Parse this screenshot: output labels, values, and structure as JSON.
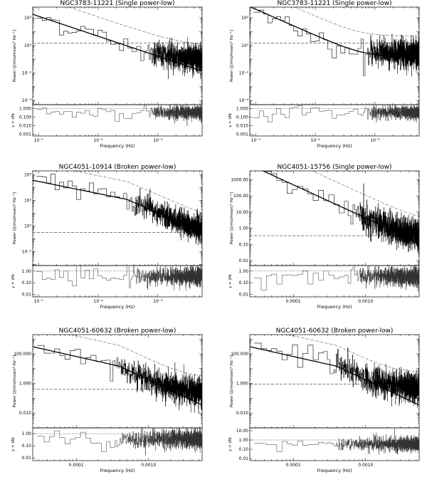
{
  "figure": {
    "xlabel": "Frequency (Hz)",
    "ylabel_power": "Power ([(rms/mean)² Hz⁻¹]",
    "ylabel_gamma": "γ = I/Nᵢ"
  },
  "chart_data": [
    {
      "type": "line",
      "title": "NGC3783-11221 (Single power-low)",
      "xlabel": "Frequency (Hz)",
      "ylabel": "Power ([(rms/mean)² Hz⁻¹]",
      "x_scale": "log",
      "y_scale": "log",
      "xlim": [
        8e-06,
        0.0055
      ],
      "ylim": [
        5e-05,
        600
      ],
      "xticks": [
        "10⁻⁵",
        "10⁻⁴",
        "10⁻³"
      ],
      "yticks": [
        "10⁻⁴",
        "10⁻²",
        "10⁰",
        "10²"
      ],
      "x_ticks_at": [
        1e-05,
        0.0001,
        0.001
      ],
      "y_ticks_at": [
        0.0001,
        0.01,
        1,
        100
      ],
      "model": {
        "kind": "power-law",
        "f0": 1.2e-05,
        "p0": 100,
        "slope": -1.45
      },
      "noise_level": 0.15,
      "poisson_reference": 1.5,
      "ratio_yticks": [
        "0.001",
        "0.010",
        "0.100",
        "1.000"
      ],
      "ratio_ticks_at": [
        0.001,
        0.01,
        0.1,
        1
      ],
      "ratio_ylim": [
        0.0006,
        3
      ],
      "grey_from": 0.00045
    },
    {
      "type": "line",
      "title": "NGC3783-11221 (Single power-low)",
      "xlabel": "Frequency (Hz)",
      "ylabel": "Power ([(rms/mean)² Hz⁻¹]",
      "x_scale": "log",
      "y_scale": "log",
      "xlim": [
        8e-06,
        0.0055
      ],
      "ylim": [
        5e-05,
        600
      ],
      "xticks": [
        "10⁻⁵",
        "10⁻⁴",
        "10⁻³"
      ],
      "yticks": [
        "10⁻⁴",
        "10⁻²",
        "10⁰",
        "10²"
      ],
      "x_ticks_at": [
        1e-05,
        0.0001,
        0.001
      ],
      "y_ticks_at": [
        0.0001,
        0.01,
        1,
        100
      ],
      "model": {
        "kind": "bending",
        "f0": 1.2e-05,
        "p0": 300,
        "slope": -1.9,
        "floor": 0.15
      },
      "noise_level": 0.15,
      "poisson_reference": 1.5,
      "ratio_yticks": [
        "0.001",
        "0.010",
        "0.100",
        "1.000"
      ],
      "ratio_ticks_at": [
        0.001,
        0.01,
        0.1,
        1
      ],
      "ratio_ylim": [
        0.0006,
        3
      ],
      "grey_from": 0.00045
    },
    {
      "type": "line",
      "title": "NGC4051-10914 (Broken power-low)",
      "xlabel": "Frequency (Hz)",
      "ylabel": "Power ([(rms/mean)² Hz⁻¹]",
      "x_scale": "log",
      "y_scale": "log",
      "xlim": [
        8e-06,
        0.0055
      ],
      "ylim": [
        0.0008,
        20000
      ],
      "xticks": [
        "10⁻⁵",
        "10⁻⁴",
        "10⁻³"
      ],
      "yticks": [
        "10⁻²",
        "10⁰",
        "10²",
        "10⁴"
      ],
      "x_ticks_at": [
        1e-05,
        0.0001,
        0.001
      ],
      "y_ticks_at": [
        0.01,
        1,
        100,
        10000
      ],
      "model": {
        "kind": "broken",
        "f0": 1e-05,
        "p0": 3000,
        "fb": 0.0003,
        "s1": -0.95,
        "s2": -2.0
      },
      "noise_level": 0.3,
      "poisson_reference": 0.3,
      "ratio_yticks": [
        "0.01",
        "0.10",
        "1.00"
      ],
      "ratio_ticks_at": [
        0.01,
        0.1,
        1
      ],
      "ratio_ylim": [
        0.006,
        3
      ],
      "grey_from": 0.00025
    },
    {
      "type": "line",
      "title": "NGC4051-15756 (Single power-low)",
      "xlabel": "Frequency (Hz)",
      "ylabel": "Power ([(rms/mean)² Hz⁻¹]",
      "x_scale": "log",
      "y_scale": "log",
      "xlim": [
        2.5e-05,
        0.0055
      ],
      "ylim": [
        0.005,
        3500
      ],
      "xticks": [
        "0.0001",
        "0.0010"
      ],
      "yticks": [
        "0.01",
        "0.10",
        "1.00",
        "10.00",
        "100.00",
        "1000.00"
      ],
      "x_ticks_at": [
        0.0001,
        0.001
      ],
      "y_ticks_at": [
        0.01,
        0.1,
        1,
        10,
        100,
        1000
      ],
      "model": {
        "kind": "power-law",
        "f0": 5e-05,
        "p0": 2000,
        "slope": -2.05
      },
      "noise_level": 0.35,
      "poisson_reference": 0.35,
      "ratio_yticks": [
        "0.01",
        "0.10",
        "1.00"
      ],
      "ratio_ticks_at": [
        0.01,
        0.1,
        1
      ],
      "ratio_ylim": [
        0.006,
        3
      ],
      "grey_from": 0.00045
    },
    {
      "type": "line",
      "title": "NGC4051-60632 (Broken power-low)",
      "xlabel": "Frequency (Hz)",
      "ylabel": "Power ([(rms/mean)² Hz⁻¹]",
      "x_scale": "log",
      "y_scale": "log",
      "xlim": [
        2.5e-05,
        0.0055
      ],
      "ylim": [
        0.001,
        2000
      ],
      "xticks": [
        "0.0001",
        "0.0010"
      ],
      "yticks": [
        "0.010",
        "1.000",
        "100.000"
      ],
      "x_ticks_at": [
        0.0001,
        0.001
      ],
      "y_ticks_at": [
        0.01,
        1,
        100
      ],
      "model": {
        "kind": "broken",
        "f0": 3e-05,
        "p0": 250,
        "fb": 0.0004,
        "s1": -1.1,
        "s2": -2.3
      },
      "noise_level": 0.4,
      "poisson_reference": 0.4,
      "ratio_yticks": [
        "0.01",
        "0.10",
        "1.00"
      ],
      "ratio_ticks_at": [
        0.01,
        0.1,
        1
      ],
      "ratio_ylim": [
        0.006,
        3
      ],
      "grey_from": 0.00025
    },
    {
      "type": "line",
      "title": "NGC4051-60632 (Broken power-low)",
      "xlabel": "Frequency (Hz)",
      "ylabel": "Power ([(rms/mean)² Hz⁻¹]",
      "x_scale": "log",
      "y_scale": "log",
      "xlim": [
        2.5e-05,
        0.0055
      ],
      "ylim": [
        0.001,
        2000
      ],
      "xticks": [
        "0.0001",
        "0.0010"
      ],
      "yticks": [
        "0.010",
        "1.000",
        "100.000"
      ],
      "x_ticks_at": [
        0.0001,
        0.001
      ],
      "y_ticks_at": [
        0.01,
        1,
        100
      ],
      "model": {
        "kind": "broken",
        "f0": 3e-05,
        "p0": 250,
        "fb": 0.0004,
        "s1": -1.1,
        "s2": -2.3
      },
      "noise_level": 0.9,
      "poisson_reference": 0.9,
      "ratio_yticks": [
        "0.01",
        "0.10",
        "1.00",
        "10.00"
      ],
      "ratio_ticks_at": [
        0.01,
        0.1,
        1,
        10
      ],
      "ratio_ylim": [
        0.006,
        20
      ],
      "grey_from": 0.00025
    }
  ]
}
